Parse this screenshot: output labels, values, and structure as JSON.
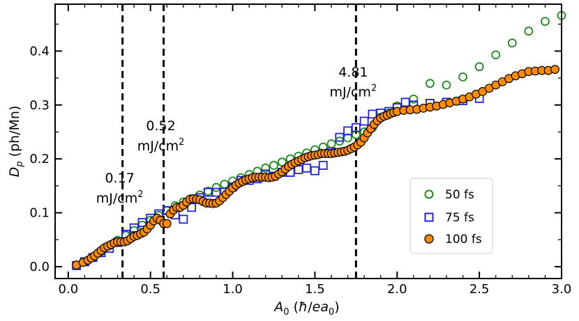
{
  "chart_data": {
    "type": "scatter",
    "title": "",
    "xlabel_main": "A",
    "xlabel_sub": "0",
    "xlabel_units_open": " (",
    "xlabel_hbar": "ħ",
    "xlabel_slash": "/",
    "xlabel_ea": "ea",
    "xlabel_ea_sub": "0",
    "xlabel_units_close": ")",
    "ylabel_main": "D",
    "ylabel_sub": "p",
    "ylabel_units": " (ph/Mn)",
    "xlim": [
      -0.08,
      3.0
    ],
    "ylim": [
      -0.022,
      0.487
    ],
    "xticks": [
      0.0,
      0.5,
      1.0,
      1.5,
      2.0,
      2.5,
      3.0
    ],
    "xtick_labels": [
      "0.0",
      "0.5",
      "1.0",
      "1.5",
      "2.0",
      "2.5",
      "3.0"
    ],
    "yticks": [
      0.0,
      0.1,
      0.2,
      0.3,
      0.4
    ],
    "ytick_labels": [
      "0.0",
      "0.1",
      "0.2",
      "0.3",
      "0.4"
    ],
    "vlines": [
      {
        "x": 0.33,
        "value": "0.17",
        "unit": "mJ/cm",
        "exp": "2",
        "label_y": [
          0.165,
          0.128
        ]
      },
      {
        "x": 0.58,
        "value": "0.52",
        "unit": "mJ/cm",
        "exp": "2",
        "label_y": [
          0.262,
          0.225
        ]
      },
      {
        "x": 1.75,
        "value": "4.81",
        "unit": "mJ/cm",
        "exp": "2",
        "label_y": [
          0.362,
          0.325
        ]
      }
    ],
    "legend_position": "lower right",
    "series": [
      {
        "name": "50 fs",
        "marker": "circle-open",
        "color": "#1a8a1a",
        "x": [
          0.05,
          0.1,
          0.15,
          0.2,
          0.25,
          0.3,
          0.35,
          0.4,
          0.45,
          0.5,
          0.55,
          0.6,
          0.65,
          0.7,
          0.75,
          0.8,
          0.85,
          0.9,
          0.95,
          1.0,
          1.05,
          1.1,
          1.15,
          1.2,
          1.25,
          1.3,
          1.35,
          1.4,
          1.45,
          1.5,
          1.55,
          1.6,
          1.65,
          1.7,
          1.75,
          1.8,
          1.85,
          1.9,
          1.95,
          2.0,
          2.1,
          2.2,
          2.3,
          2.4,
          2.5,
          2.6,
          2.7,
          2.8,
          2.9,
          3.0
        ],
        "y": [
          0.003,
          0.009,
          0.018,
          0.028,
          0.039,
          0.049,
          0.058,
          0.067,
          0.077,
          0.086,
          0.095,
          0.104,
          0.113,
          0.12,
          0.126,
          0.133,
          0.14,
          0.147,
          0.153,
          0.159,
          0.165,
          0.171,
          0.177,
          0.183,
          0.188,
          0.194,
          0.2,
          0.205,
          0.211,
          0.217,
          0.222,
          0.228,
          0.233,
          0.239,
          0.245,
          0.25,
          0.258,
          0.277,
          0.285,
          0.298,
          0.311,
          0.34,
          0.337,
          0.352,
          0.371,
          0.393,
          0.415,
          0.437,
          0.455,
          0.466
        ]
      },
      {
        "name": "75 fs",
        "marker": "square-open",
        "color": "#1f1fe0",
        "x": [
          0.05,
          0.1,
          0.15,
          0.2,
          0.25,
          0.3,
          0.35,
          0.4,
          0.45,
          0.5,
          0.55,
          0.6,
          0.65,
          0.7,
          0.75,
          0.8,
          0.85,
          0.9,
          0.95,
          1.0,
          1.05,
          1.1,
          1.15,
          1.2,
          1.25,
          1.3,
          1.35,
          1.4,
          1.45,
          1.5,
          1.55,
          1.6,
          1.65,
          1.7,
          1.75,
          1.8,
          1.85,
          1.9,
          1.95,
          2.0,
          2.05,
          2.1,
          2.2,
          2.3,
          2.4,
          2.5
        ],
        "y": [
          0.002,
          0.009,
          0.017,
          0.026,
          0.034,
          0.045,
          0.06,
          0.072,
          0.082,
          0.09,
          0.098,
          0.104,
          0.096,
          0.088,
          0.11,
          0.128,
          0.138,
          0.138,
          0.138,
          0.148,
          0.16,
          0.16,
          0.163,
          0.172,
          0.168,
          0.175,
          0.175,
          0.18,
          0.183,
          0.178,
          0.188,
          0.213,
          0.24,
          0.252,
          0.258,
          0.27,
          0.283,
          0.285,
          0.288,
          0.295,
          0.305,
          0.3,
          0.303,
          0.305,
          0.308,
          0.312
        ]
      },
      {
        "name": "100 fs",
        "marker": "circle-filled",
        "color": "#ff8c00",
        "x": [
          0.05,
          0.09,
          0.12,
          0.14,
          0.16,
          0.18,
          0.2,
          0.22,
          0.24,
          0.26,
          0.28,
          0.3,
          0.32,
          0.34,
          0.36,
          0.38,
          0.4,
          0.42,
          0.44,
          0.46,
          0.48,
          0.5,
          0.52,
          0.54,
          0.56,
          0.58,
          0.6,
          0.62,
          0.64,
          0.66,
          0.68,
          0.7,
          0.72,
          0.74,
          0.76,
          0.78,
          0.8,
          0.82,
          0.84,
          0.86,
          0.88,
          0.9,
          0.92,
          0.94,
          0.96,
          0.98,
          1.0,
          1.02,
          1.04,
          1.06,
          1.08,
          1.1,
          1.12,
          1.14,
          1.16,
          1.18,
          1.2,
          1.22,
          1.24,
          1.26,
          1.28,
          1.3,
          1.32,
          1.34,
          1.36,
          1.38,
          1.4,
          1.42,
          1.44,
          1.46,
          1.48,
          1.5,
          1.52,
          1.54,
          1.56,
          1.58,
          1.6,
          1.62,
          1.64,
          1.66,
          1.68,
          1.7,
          1.72,
          1.74,
          1.76,
          1.78,
          1.8,
          1.82,
          1.84,
          1.86,
          1.88,
          1.9,
          1.92,
          1.94,
          1.96,
          1.98,
          2.0,
          2.04,
          2.08,
          2.12,
          2.16,
          2.2,
          2.24,
          2.28,
          2.32,
          2.36,
          2.4,
          2.44,
          2.48,
          2.52,
          2.56,
          2.6,
          2.64,
          2.68,
          2.72,
          2.76,
          2.8,
          2.84,
          2.88,
          2.92,
          2.96
        ],
        "y": [
          0.003,
          0.008,
          0.012,
          0.016,
          0.02,
          0.025,
          0.03,
          0.035,
          0.038,
          0.041,
          0.044,
          0.046,
          0.046,
          0.046,
          0.048,
          0.052,
          0.056,
          0.058,
          0.061,
          0.064,
          0.07,
          0.077,
          0.085,
          0.09,
          0.086,
          0.08,
          0.08,
          0.098,
          0.105,
          0.11,
          0.11,
          0.114,
          0.12,
          0.125,
          0.126,
          0.125,
          0.124,
          0.121,
          0.118,
          0.118,
          0.117,
          0.118,
          0.122,
          0.128,
          0.134,
          0.14,
          0.146,
          0.151,
          0.155,
          0.158,
          0.161,
          0.163,
          0.165,
          0.166,
          0.166,
          0.166,
          0.166,
          0.165,
          0.166,
          0.168,
          0.172,
          0.176,
          0.181,
          0.186,
          0.19,
          0.193,
          0.196,
          0.199,
          0.202,
          0.204,
          0.206,
          0.207,
          0.208,
          0.21,
          0.21,
          0.21,
          0.21,
          0.211,
          0.212,
          0.213,
          0.214,
          0.216,
          0.219,
          0.222,
          0.226,
          0.231,
          0.239,
          0.248,
          0.256,
          0.264,
          0.271,
          0.276,
          0.279,
          0.281,
          0.284,
          0.286,
          0.288,
          0.29,
          0.291,
          0.292,
          0.294,
          0.296,
          0.298,
          0.301,
          0.304,
          0.307,
          0.311,
          0.315,
          0.32,
          0.325,
          0.331,
          0.337,
          0.343,
          0.349,
          0.354,
          0.358,
          0.362,
          0.363,
          0.364,
          0.364,
          0.366
        ]
      }
    ]
  }
}
